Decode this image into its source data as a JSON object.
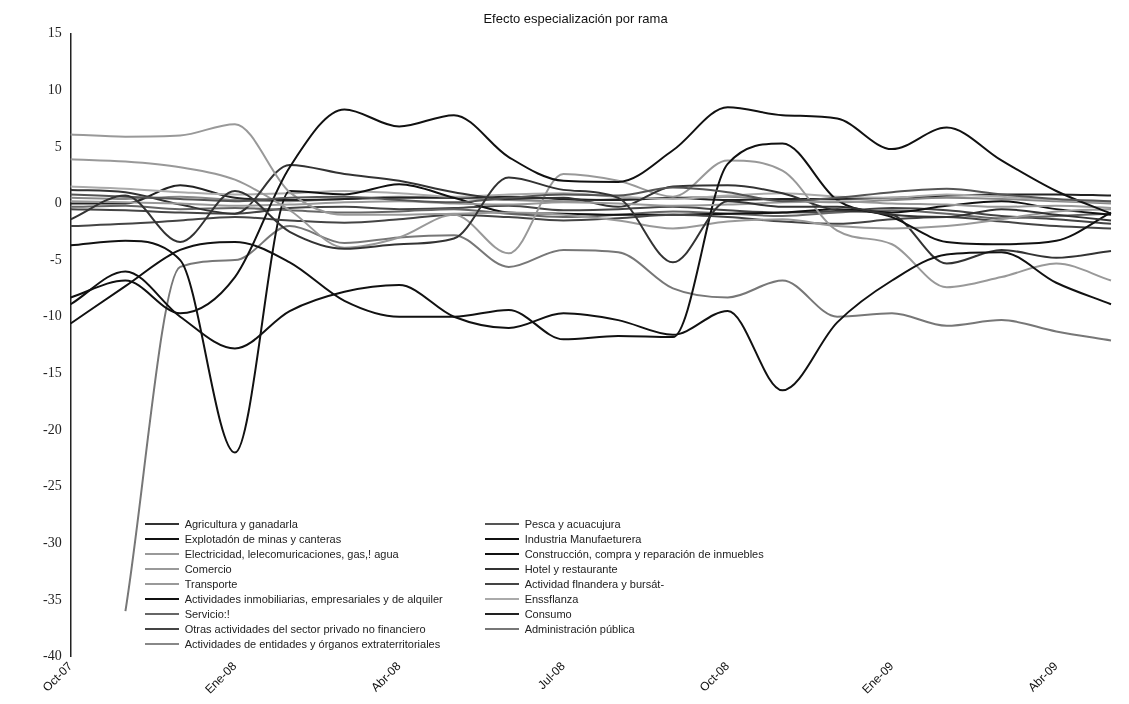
{
  "chart_data": {
    "type": "line",
    "title": "Efecto especialización por rama",
    "categories": [
      "Oct-07",
      null,
      null,
      "Ene-08",
      null,
      null,
      "Abr-08",
      null,
      null,
      "Jul-08",
      null,
      null,
      "Oct-08",
      null,
      null,
      "Ene-09",
      null,
      null,
      "Abr-09",
      null
    ],
    "series": [
      {
        "name": "Agricultura y ganadarla",
        "color": "#333333",
        "values": [
          -1.4,
          0.7,
          -3.4,
          1.1,
          -2.5,
          -4.0,
          -3.6,
          -3.1,
          2.3,
          1.2,
          0.5,
          -5.2,
          0.2,
          -0.3,
          -0.3,
          -1.0,
          -1.2,
          -0.5,
          -1.0,
          -1.5
        ]
      },
      {
        "name": "Pesca y acuacujura",
        "color": "#555555",
        "values": [
          0.8,
          0.6,
          0.4,
          0.2,
          0.5,
          0.6,
          0.3,
          0.1,
          0.5,
          0.8,
          0.7,
          1.4,
          1.0,
          0.2,
          0.5,
          1.0,
          1.3,
          0.8,
          0.4,
          0.2
        ]
      },
      {
        "name": "Explotadón de minas y canteras",
        "color": "#111111",
        "values": [
          -8.9,
          -6.0,
          -10.0,
          -12.8,
          -9.5,
          -7.8,
          -7.2,
          -10.0,
          -11.0,
          -9.7,
          -10.3,
          -11.6,
          -9.5,
          -16.5,
          -10.5,
          -6.8,
          -4.5,
          -4.3,
          -7.0,
          -8.9
        ]
      },
      {
        "name": "Industria Manufaeturera",
        "color": "#111111",
        "values": [
          -8.3,
          -6.8,
          -9.7,
          -6.5,
          3.2,
          8.3,
          6.8,
          7.8,
          4.1,
          2.0,
          1.9,
          4.7,
          8.5,
          7.8,
          7.5,
          4.8,
          6.7,
          3.8,
          1.1,
          -0.9
        ]
      },
      {
        "name": "Electricidad, lelecomuricaciones, gas,! agua",
        "color": "#999999",
        "values": [
          0.2,
          0.1,
          0.0,
          -0.2,
          -0.1,
          0.1,
          0.2,
          0.0,
          -0.1,
          0.1,
          0.0,
          -0.2,
          -0.1,
          0.1,
          0.2,
          0.0,
          -0.1,
          -0.3,
          -0.2,
          -0.4
        ]
      },
      {
        "name": "Construcción, compra y reparación de inmuebles",
        "color": "#111111",
        "values": [
          -10.6,
          -7.3,
          -4.1,
          -3.4,
          -5.2,
          -8.6,
          -10.0,
          -10.0,
          -9.4,
          -12.0,
          -11.7,
          -11.8,
          3.5,
          5.3,
          0.3,
          -1.2,
          -3.4,
          -3.6,
          -3.3,
          -0.8
        ]
      },
      {
        "name": "Comercio",
        "color": "#999999",
        "values": [
          6.1,
          5.9,
          6.0,
          7.0,
          1.0,
          -1.0,
          -1.0,
          -0.9,
          -0.8,
          -1.0,
          -1.5,
          -2.2,
          -1.6,
          -1.4,
          -2.0,
          -2.2,
          -2.0,
          -1.4,
          -0.7,
          -0.5
        ]
      },
      {
        "name": "Hotel y restaurante",
        "color": "#333333",
        "values": [
          1.2,
          1.0,
          -0.1,
          -0.9,
          3.4,
          2.6,
          2.0,
          1.0,
          0.4,
          0.5,
          -0.3,
          1.5,
          1.6,
          0.9,
          -0.6,
          -1.0,
          -5.3,
          -4.1,
          -4.8,
          -4.2
        ]
      },
      {
        "name": "Transporte",
        "color": "#999999",
        "values": [
          3.9,
          3.7,
          3.2,
          2.1,
          -0.6,
          -3.9,
          -3.0,
          -1.0,
          -4.4,
          2.6,
          2.0,
          0.6,
          3.8,
          2.9,
          -2.4,
          -3.6,
          -7.4,
          -6.5,
          -5.3,
          -6.8
        ]
      },
      {
        "name": "Actividad flnandera y bursát-",
        "color": "#444444",
        "values": [
          -2.0,
          -1.8,
          -1.5,
          -1.2,
          -1.5,
          -1.7,
          -1.4,
          -1.0,
          -1.2,
          -1.5,
          -1.3,
          -1.0,
          -1.2,
          -1.6,
          -1.8,
          -1.4,
          -1.2,
          -1.6,
          -2.0,
          -2.2
        ]
      },
      {
        "name": "Actividades inmobiliarias, empresariales y de alquiler",
        "color": "#111111",
        "values": [
          -3.7,
          -3.3,
          -5.0,
          -22.0,
          1.1,
          0.8,
          1.7,
          0.5,
          -0.8,
          -0.9,
          -1.0,
          -1.0,
          -0.9,
          -0.8,
          -0.5,
          -0.8,
          -0.2,
          0.2,
          -0.5,
          -1.0
        ]
      },
      {
        "name": "Enssflanza",
        "color": "#aaaaaa",
        "values": [
          1.5,
          1.3,
          1.0,
          0.8,
          0.9,
          1.1,
          0.9,
          0.6,
          0.8,
          0.9,
          0.6,
          0.4,
          0.7,
          0.9,
          0.6,
          0.5,
          0.8,
          0.6,
          0.3,
          0.1
        ]
      },
      {
        "name": "Servicio:!",
        "color": "#666666",
        "values": [
          -0.3,
          -0.2,
          -0.5,
          -0.4,
          -0.6,
          -0.8,
          -0.7,
          -0.5,
          -0.9,
          -1.2,
          -1.0,
          -0.7,
          -0.9,
          -1.1,
          -0.8,
          -0.6,
          -0.9,
          -1.3,
          -1.1,
          -0.9
        ]
      },
      {
        "name": "Consumo",
        "color": "#222222",
        "values": [
          0.0,
          0.0,
          1.6,
          0.5,
          0.3,
          0.4,
          0.5,
          0.5,
          0.6,
          0.4,
          0.3,
          0.5,
          0.3,
          0.4,
          0.4,
          0.5,
          0.7,
          0.8,
          0.8,
          0.7
        ]
      },
      {
        "name": "Otras actividades del sector privado no financiero",
        "color": "#444444",
        "values": [
          -0.5,
          -0.6,
          -0.8,
          -0.9,
          -0.4,
          -0.3,
          -0.5,
          -0.4,
          -0.2,
          -0.6,
          -0.5,
          -0.3,
          -0.6,
          -0.8,
          -0.7,
          -0.4,
          -0.6,
          -1.1,
          -1.4,
          -1.8
        ]
      },
      {
        "name": "Administración pública",
        "color": "#777777",
        "values": [
          null,
          -36.0,
          -5.6,
          -5.0,
          -2.0,
          -3.5,
          -3.0,
          -2.8,
          -5.6,
          -4.1,
          -4.3,
          -7.5,
          -8.3,
          -6.8,
          -10.0,
          -9.7,
          -10.8,
          -10.3,
          -11.3,
          -12.1
        ]
      },
      {
        "name": "Actividades de entidades y órganos extraterritoriales",
        "color": "#888888",
        "values": [
          0.5,
          0.4,
          0.6,
          0.3,
          0.2,
          0.4,
          0.6,
          0.5,
          0.3,
          0.2,
          0.4,
          0.5,
          0.6,
          0.3,
          0.1,
          0.3,
          0.5,
          0.4,
          0.2,
          0.0
        ]
      }
    ],
    "ylim": [
      -40,
      15
    ],
    "yticks": [
      -40,
      -35,
      -30,
      -25,
      -20,
      -15,
      -10,
      -5,
      0,
      5,
      10,
      15
    ],
    "grid": false,
    "legend": "bottom left",
    "marker": "none",
    "line_style": "solid"
  }
}
